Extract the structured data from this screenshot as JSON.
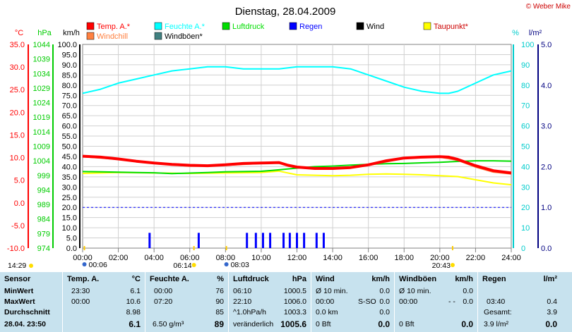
{
  "title": "Dienstag, 28.04.2009",
  "credit": "© Weber Mike",
  "chart_data": {
    "type": "line",
    "x_ticks": [
      "00:00",
      "02:00",
      "04:00",
      "06:00",
      "08:00",
      "10:00",
      "12:00",
      "14:00",
      "16:00",
      "18:00",
      "20:00",
      "22:00",
      "24:00"
    ],
    "xlim": [
      0,
      24
    ],
    "axes": {
      "temp": {
        "unit": "°C",
        "color": "#ff0000",
        "ylim": [
          -10,
          35
        ],
        "ticks": [
          "35.0",
          "30.0",
          "25.0",
          "20.0",
          "15.0",
          "10.0",
          "5.0",
          "0.0",
          "-5.0",
          "-10.0"
        ]
      },
      "pressure": {
        "unit": "hPa",
        "color": "#00cc00",
        "ylim": [
          974,
          1044
        ],
        "ticks": [
          "1044",
          "1039",
          "1034",
          "1029",
          "1024",
          "1019",
          "1014",
          "1009",
          "1004",
          "999",
          "994",
          "989",
          "984",
          "979",
          "974"
        ]
      },
      "wind": {
        "unit": "km/h",
        "color": "#000000",
        "ylim": [
          0,
          100
        ],
        "ticks": [
          "100.0",
          "95.0",
          "90.0",
          "85.0",
          "80.0",
          "75.0",
          "70.0",
          "65.0",
          "60.0",
          "55.0",
          "50.0",
          "45.0",
          "40.0",
          "35.0",
          "30.0",
          "25.0",
          "20.0",
          "15.0",
          "10.0",
          "5.0",
          "0.0"
        ]
      },
      "humidity": {
        "unit": "%",
        "color": "#00cccc",
        "ylim": [
          0,
          100
        ],
        "ticks": [
          "100",
          "90",
          "80",
          "70",
          "60",
          "50",
          "40",
          "30",
          "20",
          "10",
          "0"
        ]
      },
      "rain": {
        "unit": "l/m²",
        "color": "#000080",
        "ylim": [
          0,
          5
        ],
        "ticks": [
          "5.0",
          "4.0",
          "3.0",
          "2.0",
          "1.0",
          "0.0"
        ]
      }
    },
    "legend": [
      {
        "name": "Temp. A.*",
        "color": "#ff0000"
      },
      {
        "name": "Feuchte A.*",
        "color": "#00ffff"
      },
      {
        "name": "Luftdruck",
        "color": "#00dd00"
      },
      {
        "name": "Regen",
        "color": "#0000ff"
      },
      {
        "name": "Wind",
        "color": "#000000"
      },
      {
        "name": "Taupunkt*",
        "color": "#ffff00"
      },
      {
        "name": "Windchill",
        "color": "#ff8040"
      },
      {
        "name": "Windböen*",
        "color": "#408080"
      }
    ],
    "series": [
      {
        "name": "Temp. A.*",
        "axis": "temp",
        "color": "#ff0000",
        "x": [
          0,
          1,
          2,
          3,
          4,
          5,
          6,
          7,
          8,
          9,
          10,
          11,
          11.5,
          12,
          13,
          14,
          15,
          16,
          17,
          18,
          19,
          20,
          20.5,
          21,
          22,
          23,
          24
        ],
        "y": [
          10.3,
          10.1,
          9.7,
          9.2,
          8.8,
          8.5,
          8.3,
          8.2,
          8.4,
          8.7,
          8.8,
          8.9,
          8.3,
          7.9,
          7.6,
          7.6,
          7.8,
          8.4,
          9.3,
          9.9,
          10.1,
          10.2,
          10.1,
          9.6,
          8.2,
          7.1,
          6.6
        ]
      },
      {
        "name": "Feuchte A.*",
        "axis": "humidity",
        "color": "#00ffff",
        "x": [
          0,
          1,
          2,
          3,
          4,
          5,
          6,
          7,
          8,
          9,
          10,
          11,
          12,
          13,
          14,
          15,
          16,
          17,
          18,
          19,
          20,
          20.5,
          21,
          22,
          23,
          24
        ],
        "y": [
          76,
          78,
          81,
          83,
          85,
          87,
          88,
          89,
          89,
          88,
          88,
          88,
          89,
          89,
          89,
          88,
          85,
          82,
          79,
          77,
          76,
          76,
          77,
          81,
          85,
          87
        ]
      },
      {
        "name": "Luftdruck",
        "axis": "pressure",
        "color": "#00dd00",
        "x": [
          0,
          1,
          2,
          3,
          4,
          5,
          6,
          7,
          8,
          9,
          10,
          11,
          12,
          13,
          14,
          15,
          16,
          17,
          18,
          19,
          20,
          21,
          22,
          23,
          24
        ],
        "y": [
          1000.3,
          1000.2,
          1000.1,
          1000.0,
          999.9,
          999.6,
          999.8,
          1000.0,
          1000.2,
          1000.3,
          1000.4,
          1000.9,
          1001.5,
          1002.0,
          1002.2,
          1002.5,
          1002.8,
          1003.0,
          1003.1,
          1003.3,
          1003.5,
          1003.8,
          1004.0,
          1004.0,
          1003.9
        ]
      },
      {
        "name": "Taupunkt*",
        "axis": "temp",
        "color": "#ffff00",
        "x": [
          0,
          2,
          4,
          6,
          8,
          10,
          11,
          12,
          13,
          14,
          15,
          16,
          17,
          18,
          19,
          20,
          21,
          22,
          23,
          24
        ],
        "y": [
          6.5,
          6.7,
          6.6,
          6.5,
          6.6,
          6.7,
          7.0,
          6.2,
          6.1,
          6.0,
          6.1,
          6.3,
          6.4,
          6.3,
          6.2,
          6.0,
          5.8,
          5.1,
          4.4,
          4.0
        ]
      },
      {
        "name": "Windchill",
        "axis": "temp",
        "color": "#ff8040",
        "x": [
          0,
          2,
          4,
          6,
          8,
          10,
          11,
          12,
          14,
          16,
          18,
          20,
          21,
          22,
          23,
          24
        ],
        "y": [
          10.2,
          9.6,
          8.7,
          8.1,
          8.3,
          8.7,
          8.8,
          7.8,
          7.5,
          8.3,
          9.8,
          10.1,
          9.4,
          7.9,
          6.8,
          6.4
        ]
      },
      {
        "name": "Regen",
        "axis": "wind",
        "type": "bar",
        "color": "#0000ff",
        "x": [
          3.75,
          6.5,
          9.2,
          9.7,
          10.1,
          10.5,
          11.25,
          11.6,
          12.0,
          12.4,
          13.1,
          13.5
        ],
        "y": [
          7.5,
          7.5,
          7.5,
          7.5,
          7.5,
          7.5,
          7.5,
          7.5,
          7.5,
          7.5,
          7.5,
          7.5
        ]
      }
    ],
    "reference_line": {
      "axis": "rain",
      "value": 1.0,
      "color": "#0000ff"
    },
    "grid": true
  },
  "sun": {
    "sunrise": "06:14",
    "sunset": "20:43",
    "dawn": "00:06",
    "dusk": "08:03",
    "now": "14:29"
  },
  "summary": {
    "headers": [
      "Sensor",
      "Temp. A.",
      "°C",
      "Feuchte A.",
      "%",
      "Luftdruck",
      "hPa",
      "Wind",
      "km/h",
      "Windböen",
      "km/h",
      "Regen",
      "l/m²"
    ],
    "rows": [
      {
        "label": "MinWert",
        "temp_time": "23:30",
        "temp": "6.1",
        "hum_time": "00:00",
        "hum": "76",
        "press_time": "06:10",
        "press": "1000.5",
        "wind_label": "Ø 10 min.",
        "wind": "0.0",
        "gust_label": "Ø 10 min.",
        "gust": "0.0",
        "rain_label": "",
        "rain": ""
      },
      {
        "label": "MaxWert",
        "temp_time": "00:00",
        "temp": "10.6",
        "hum_time": "07:20",
        "hum": "90",
        "press_time": "22:10",
        "press": "1006.0",
        "wind_label": "00:00",
        "wind_dir": "S-SO",
        "wind": "0.0",
        "gust_label": "00:00",
        "gust_dir": "- -",
        "gust": "0.0",
        "rain_label": "03:40",
        "rain": "0.4"
      },
      {
        "label": "Durchschnitt",
        "temp_time": "",
        "temp": "8.98",
        "hum_time": "",
        "hum": "85",
        "press_time": "^1.0hPa/h",
        "press": "1003.3",
        "wind_label": "0.0 km",
        "wind": "0.0",
        "gust_label": "",
        "gust": "",
        "rain_label": "Gesamt:",
        "rain": "3.9"
      },
      {
        "label": "28.04. 23:50",
        "temp_time": "",
        "temp": "6.1",
        "hum_time": "6.50 g/m³",
        "hum": "89",
        "press_time": "veränderlich",
        "press": "1005.6",
        "wind_label": "0 Bft",
        "wind": "0.0",
        "gust_label": "0 Bft",
        "gust": "0.0",
        "rain_label": "3.9 l/m²",
        "rain": "0.0"
      }
    ]
  }
}
